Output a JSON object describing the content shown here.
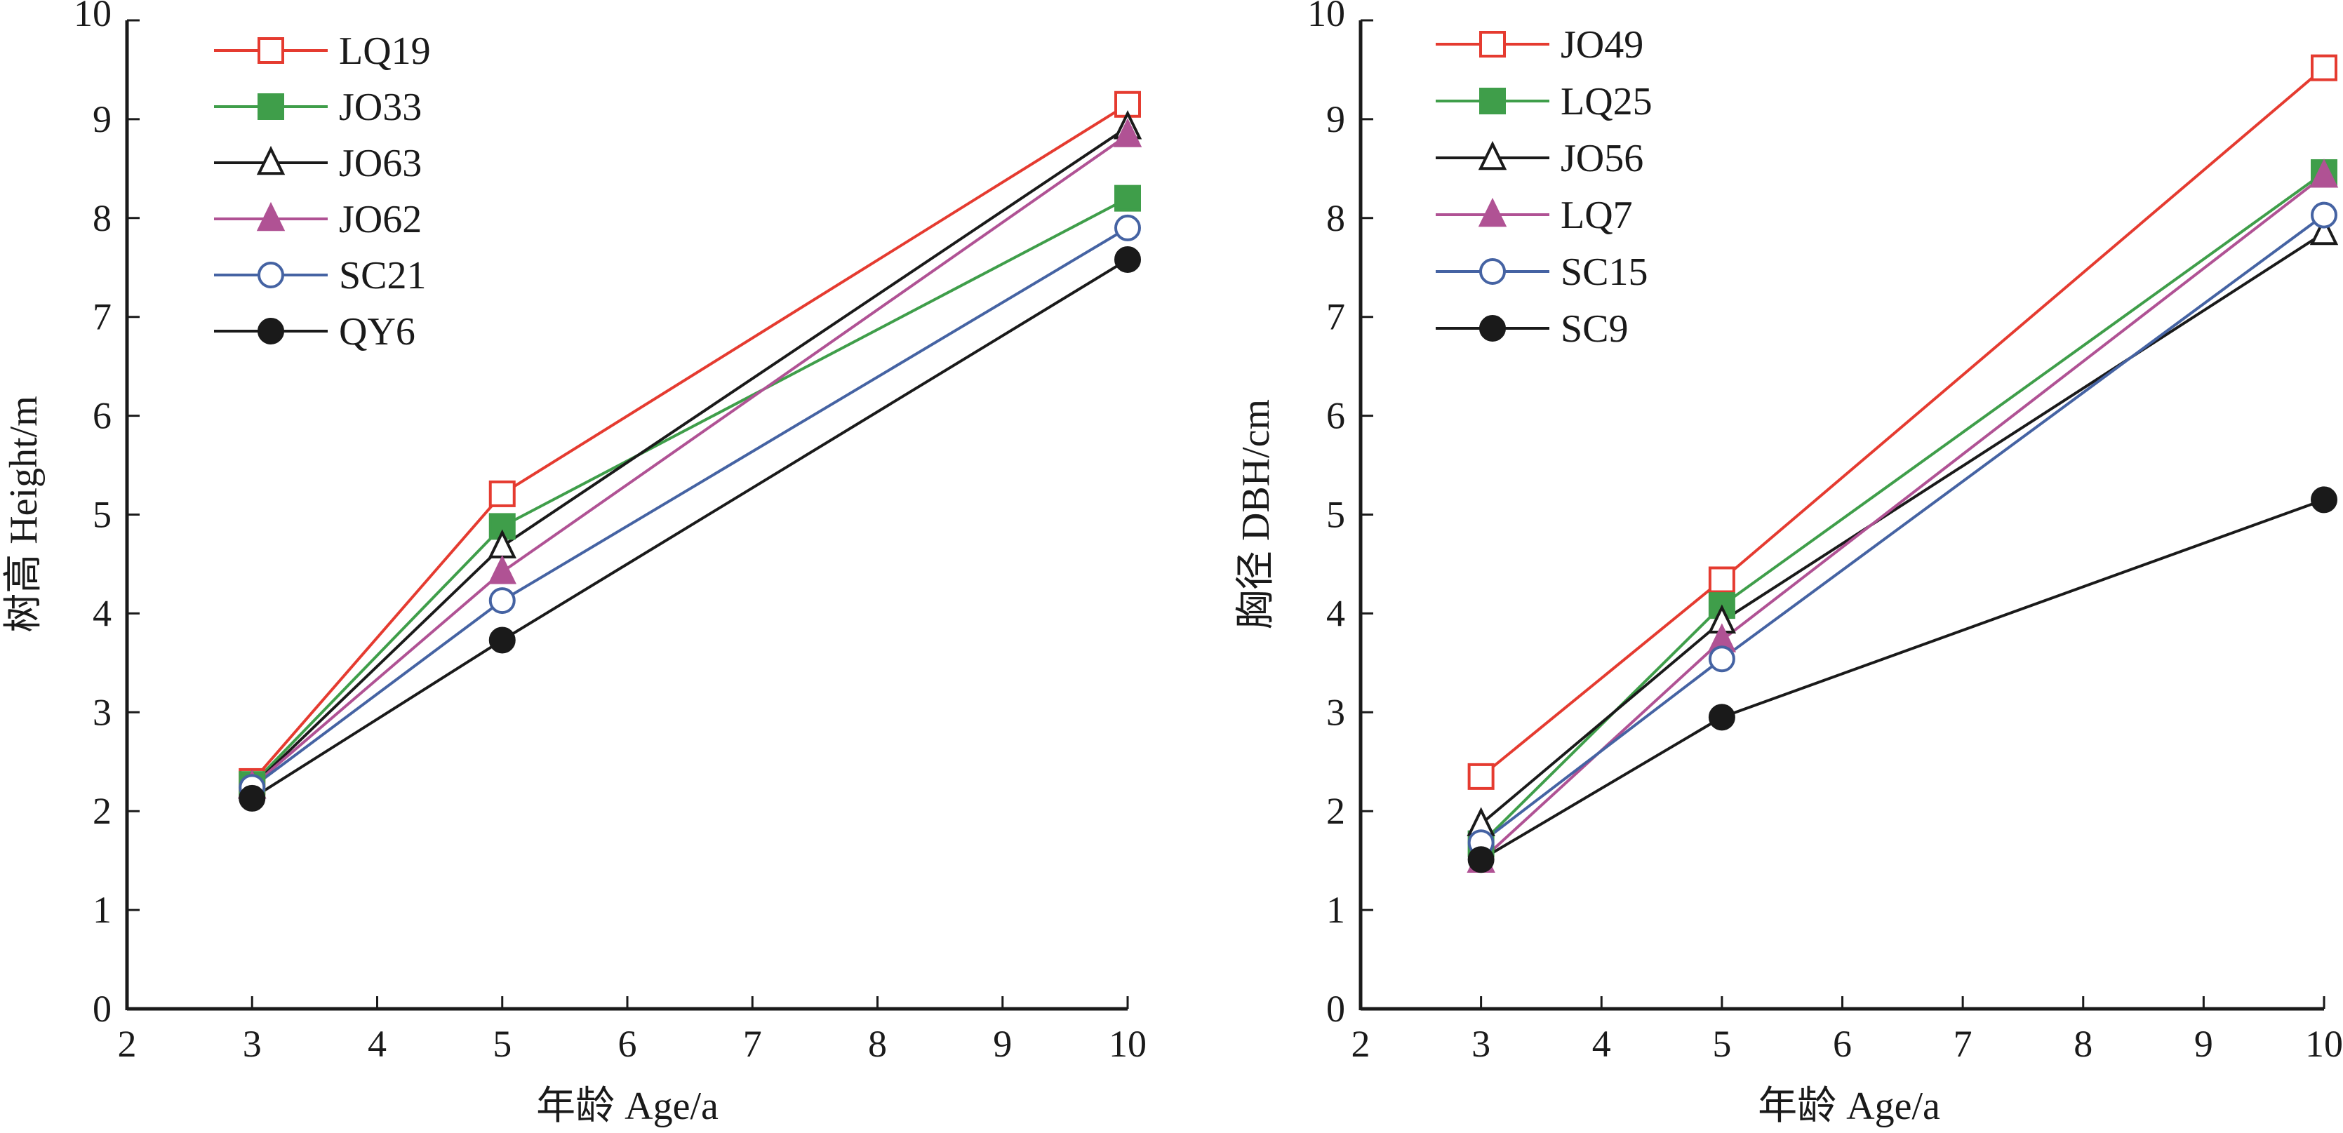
{
  "chart_data": [
    {
      "type": "line",
      "title": "",
      "xlabel": "年龄  Age/a",
      "ylabel": "树高  Height/m",
      "xlim": [
        2,
        10
      ],
      "ylim": [
        0,
        10
      ],
      "xticks": [
        2,
        3,
        4,
        5,
        6,
        7,
        8,
        9,
        10
      ],
      "yticks": [
        0,
        1,
        2,
        3,
        4,
        5,
        6,
        7,
        8,
        9,
        10
      ],
      "grid": false,
      "legend_position": "top-left",
      "x": [
        3,
        5,
        10
      ],
      "series": [
        {
          "name": "LQ19",
          "values": [
            2.3,
            5.21,
            9.15
          ],
          "color": "#e53b30",
          "marker": "square-open"
        },
        {
          "name": "JO33",
          "values": [
            2.27,
            4.88,
            8.2
          ],
          "color": "#3f9e4a",
          "marker": "square-filled"
        },
        {
          "name": "JO63",
          "values": [
            2.25,
            4.68,
            8.92
          ],
          "color": "#1a1a1a",
          "marker": "triangle-open"
        },
        {
          "name": "JO62",
          "values": [
            2.25,
            4.42,
            8.84
          ],
          "color": "#b05294",
          "marker": "triangle-filled"
        },
        {
          "name": "SC21",
          "values": [
            2.24,
            4.13,
            7.9
          ],
          "color": "#4563a3",
          "marker": "circle-open"
        },
        {
          "name": "QY6",
          "values": [
            2.13,
            3.73,
            7.58
          ],
          "color": "#1a1a1a",
          "marker": "circle-filled"
        }
      ]
    },
    {
      "type": "line",
      "title": "",
      "xlabel": "年龄  Age/a",
      "ylabel": "胸径  DBH/cm",
      "xlim": [
        2,
        10
      ],
      "ylim": [
        0,
        10
      ],
      "xticks": [
        2,
        3,
        4,
        5,
        6,
        7,
        8,
        9,
        10
      ],
      "yticks": [
        0,
        1,
        2,
        3,
        4,
        5,
        6,
        7,
        8,
        9,
        10
      ],
      "grid": false,
      "legend_position": "top-left",
      "x": [
        3,
        5,
        10
      ],
      "series": [
        {
          "name": "JO49",
          "values": [
            2.35,
            4.34,
            9.52
          ],
          "color": "#e53b30",
          "marker": "square-open"
        },
        {
          "name": "LQ25",
          "values": [
            1.67,
            4.08,
            8.46
          ],
          "color": "#3f9e4a",
          "marker": "square-filled"
        },
        {
          "name": "JO56",
          "values": [
            1.87,
            3.92,
            7.85
          ],
          "color": "#1a1a1a",
          "marker": "triangle-open"
        },
        {
          "name": "LQ7",
          "values": [
            1.5,
            3.73,
            8.43
          ],
          "color": "#b05294",
          "marker": "triangle-filled"
        },
        {
          "name": "SC15",
          "values": [
            1.68,
            3.54,
            8.03
          ],
          "color": "#4563a3",
          "marker": "circle-open"
        },
        {
          "name": "SC9",
          "values": [
            1.51,
            2.95,
            5.15
          ],
          "color": "#1a1a1a",
          "marker": "circle-filled"
        }
      ]
    }
  ]
}
